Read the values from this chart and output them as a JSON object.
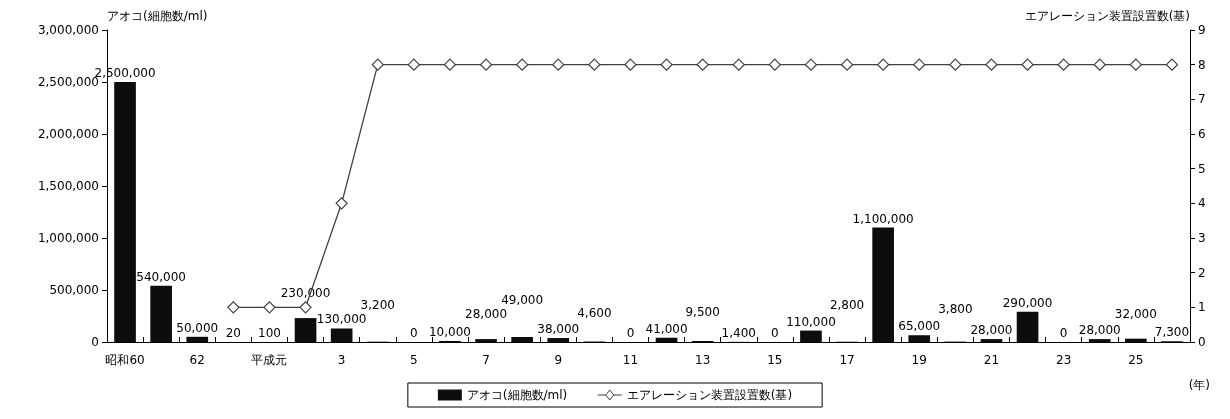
{
  "chart_data": {
    "type": "bar",
    "ylabel": "アオコ(細胞数/ml)",
    "y2label": "エアレーション装置設置数(基)",
    "categories": [
      "昭和60",
      null,
      "62",
      null,
      "平成元",
      null,
      "3",
      null,
      "5",
      null,
      "7",
      null,
      "9",
      null,
      "11",
      null,
      "13",
      null,
      "15",
      null,
      "17",
      null,
      "19",
      null,
      "21",
      null,
      "23",
      null,
      "25",
      null
    ],
    "series": [
      {
        "name": "アオコ(細胞数/ml)",
        "color": "#0d0d0d",
        "values": [
          2500000,
          540000,
          50000,
          20,
          100,
          230000,
          130000,
          3200,
          0,
          10000,
          28000,
          49000,
          38000,
          4600,
          0,
          41000,
          9500,
          1400,
          0,
          110000,
          2800,
          1100000,
          65000,
          3800,
          28000,
          290000,
          0,
          28000,
          32000,
          7300
        ],
        "value_labels": [
          "2,500,000",
          "540,000",
          "50,000",
          "20",
          "100",
          "230,000",
          "130,000",
          "3,200",
          "0",
          "10,000",
          "28,000",
          "49,000",
          "38,000",
          "4,600",
          "0",
          "41,000",
          "9,500",
          "1,400",
          "0",
          "110,000",
          "2,800",
          "1,100,000",
          "65,000",
          "3,800",
          "28,000",
          "290,000",
          "0",
          "28,000",
          "32,000",
          "7,300"
        ]
      },
      {
        "name": "エアレーション装置設置数(基)",
        "type": "line",
        "axis": "y2",
        "color": "#404040",
        "marker": "diamond",
        "values": [
          null,
          null,
          null,
          1,
          1,
          1,
          4,
          8,
          8,
          8,
          8,
          8,
          8,
          8,
          8,
          8,
          8,
          8,
          8,
          8,
          8,
          8,
          8,
          8,
          8,
          8,
          8,
          8,
          8,
          8
        ]
      }
    ],
    "ylim": [
      0,
      3000000
    ],
    "yticks": [
      0,
      {
        "value": 500000,
        "label": "500,000"
      },
      {
        "value": 1000000,
        "label": "1,000,000"
      },
      {
        "value": 1500000,
        "label": "1,500,000"
      },
      {
        "value": 2000000,
        "label": "2,000,000"
      },
      {
        "value": 2500000,
        "label": "2,500,000"
      },
      {
        "value": 3000000,
        "label": "3,000,000"
      }
    ],
    "y2lim": [
      0,
      9
    ],
    "y2ticks": [
      0,
      1,
      2,
      3,
      4,
      5,
      6,
      7,
      8,
      9
    ],
    "grid": false,
    "legend": "bottom",
    "annotations": [
      "(年)"
    ]
  }
}
